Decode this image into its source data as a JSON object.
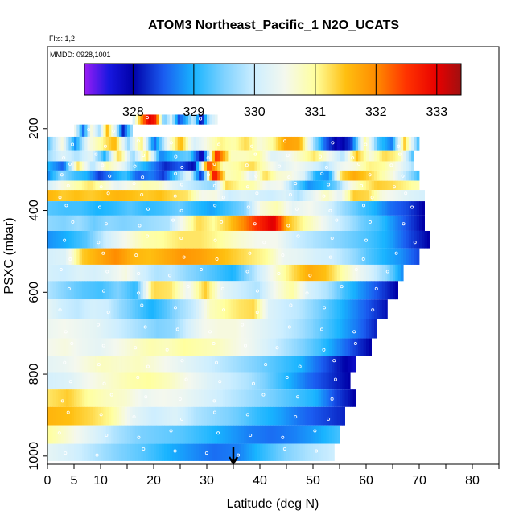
{
  "chart_data": {
    "type": "heatmap",
    "title": "ATOM3 Northeast_Pacific_1 N2O_UCATS",
    "subtitle_flights": "Flts: 1,2",
    "subtitle_dates": "MMDD: 0928,1001",
    "xlabel": "Latitude (deg N)",
    "ylabel": "PSXC (mbar)",
    "xlim": [
      0,
      85
    ],
    "ylim": [
      1020,
      0
    ],
    "x_ticks": [
      0,
      5,
      10,
      20,
      30,
      40,
      50,
      60,
      70,
      80
    ],
    "x_minor_ticks": [
      15,
      25,
      35,
      45,
      55,
      65,
      75,
      85
    ],
    "y_ticks": [
      200,
      400,
      600,
      800,
      1000
    ],
    "colorbar": {
      "min": 327.2,
      "max": 333.4,
      "ticks": [
        328,
        329,
        330,
        331,
        332,
        333
      ],
      "tick_labels": [
        "328",
        "329",
        "330",
        "331",
        "332",
        "333"
      ],
      "color_stops": [
        {
          "v": 327.2,
          "c": "#9a1cf5"
        },
        {
          "v": 327.6,
          "c": "#1818e0"
        },
        {
          "v": 328.0,
          "c": "#0000a8"
        },
        {
          "v": 328.5,
          "c": "#1a5cf0"
        },
        {
          "v": 329.0,
          "c": "#18b4ff"
        },
        {
          "v": 329.5,
          "c": "#7fd2ff"
        },
        {
          "v": 330.0,
          "c": "#cdeeff"
        },
        {
          "v": 330.5,
          "c": "#f4f8ee"
        },
        {
          "v": 331.0,
          "c": "#ffff9e"
        },
        {
          "v": 331.5,
          "c": "#ffbf10"
        },
        {
          "v": 332.0,
          "c": "#ff8c00"
        },
        {
          "v": 332.5,
          "c": "#ff3300"
        },
        {
          "v": 333.0,
          "c": "#e80000"
        },
        {
          "v": 333.4,
          "c": "#a01010"
        }
      ]
    },
    "arrow_latitude": 35,
    "bands": [
      {
        "p": 200,
        "lat0": 5,
        "lat1": 16,
        "vals": [
          330.4,
          328.6,
          330.6,
          329.8,
          331.5,
          330.2,
          328.2,
          329.6
        ]
      },
      {
        "p": 180,
        "lat0": 16,
        "lat1": 32,
        "vals": [
          330.2,
          331.8,
          333.1,
          332.6,
          329.3,
          330.2,
          328.4,
          329.0,
          330.1,
          327.8,
          329.8,
          330.3
        ]
      },
      {
        "p": 240,
        "lat0": 0,
        "lat1": 70,
        "vals": [
          329.4,
          330.6,
          328.8,
          330.5,
          331.0,
          331.6,
          329.6,
          331.2,
          328.5,
          330.4,
          331.6,
          330.1,
          330.6,
          331.1,
          330.9,
          331.3,
          330.6,
          331.0,
          331.8,
          331.7,
          329.9,
          328.5,
          327.8,
          328.4,
          331.0,
          329.2,
          328.7,
          331.4,
          329.3
        ]
      },
      {
        "p": 270,
        "lat0": 0,
        "lat1": 69,
        "vals": [
          329.7,
          330.2,
          329.8,
          330.3,
          329.0,
          331.4,
          329.6,
          331.2,
          328.7,
          329.2,
          329.4,
          327.8,
          332.7,
          330.8,
          330.8,
          331.0,
          330.2,
          330.4,
          330.8,
          331.2,
          330.5,
          329.8,
          331.5,
          330.6,
          331.3,
          331.0,
          329.3
        ]
      },
      {
        "p": 290,
        "lat0": 0,
        "lat1": 69,
        "vals": [
          329.0,
          328.5,
          331.2,
          329.8,
          330.9,
          330.4,
          329.3,
          328.8,
          328.2,
          328.5,
          328.0,
          332.5,
          330.8,
          331.0,
          331.3,
          330.7,
          330.2,
          330.5,
          330.2,
          329.8,
          330.4,
          330.6,
          331.1,
          331.0,
          330.5,
          329.8
        ]
      },
      {
        "p": 315,
        "lat0": 0,
        "lat1": 70,
        "vals": [
          328.8,
          329.6,
          329.2,
          329.0,
          328.3,
          328.8,
          329.2,
          328.5,
          328.7,
          328.3,
          329.3,
          330.4,
          328.1,
          333.0,
          330.8,
          331.0,
          330.2,
          331.3,
          330.7,
          330.6,
          330.2,
          329.0,
          328.8,
          331.3,
          331.7,
          331.4,
          331.0,
          330.6,
          329.9,
          329.2
        ]
      },
      {
        "p": 340,
        "lat0": 0,
        "lat1": 70,
        "vals": [
          330.1,
          330.6,
          330.9,
          331.2,
          330.8,
          330.3,
          330.6,
          330.9,
          330.8,
          330.3,
          330.0,
          329.8,
          329.6,
          331.3,
          331.0,
          330.9,
          330.4,
          330.5,
          329.5,
          328.8,
          329.0,
          329.4,
          330.5,
          331.0,
          331.4,
          331.3,
          331.1,
          330.9
        ]
      },
      {
        "p": 360,
        "lat0": 0,
        "lat1": 71,
        "vals": [
          331.6,
          331.4,
          331.5,
          331.4,
          331.5,
          331.6,
          331.5,
          331.4,
          331.5,
          331.3,
          331.2,
          330.5,
          330.6,
          330.0,
          330.2,
          330.1,
          330.0,
          330.2,
          329.8,
          330.3,
          330.8,
          330.3,
          331.4,
          331.3,
          330.6,
          330.4,
          330.2,
          330.1
        ]
      },
      {
        "p": 395,
        "lat0": 0,
        "lat1": 71,
        "vals": [
          329.3,
          329.2,
          329.2,
          329.0,
          329.1,
          329.3,
          329.1,
          329.2,
          329.4,
          329.1,
          328.9,
          329.2,
          329.5,
          330.6,
          330.9,
          330.3,
          330.5,
          330.2,
          329.7,
          329.3,
          329.0,
          328.6,
          328.4,
          328.0
        ]
      },
      {
        "p": 430,
        "lat0": 0,
        "lat1": 71,
        "vals": [
          329.6,
          329.5,
          329.7,
          329.4,
          329.6,
          329.5,
          329.6,
          329.7,
          329.8,
          330.6,
          331.3,
          331.0,
          331.4,
          332.0,
          332.6,
          333.1,
          331.5,
          331.0,
          330.6,
          330.1,
          329.8,
          329.4,
          329.2,
          328.8,
          328.4,
          328.0
        ]
      },
      {
        "p": 470,
        "lat0": 0,
        "lat1": 72,
        "vals": [
          328.8,
          329.0,
          329.3,
          330.0,
          330.5,
          330.9,
          331.0,
          331.2,
          331.2,
          331.0,
          330.7,
          330.5,
          330.5,
          330.0,
          329.8,
          329.6,
          329.4,
          329.2,
          328.9,
          328.4,
          328.0
        ]
      },
      {
        "p": 515,
        "lat0": 0,
        "lat1": 70,
        "vals": [
          330.1,
          330.2,
          331.4,
          331.7,
          332.0,
          331.6,
          331.5,
          331.7,
          331.9,
          331.8,
          331.6,
          331.4,
          331.2,
          331.0,
          330.4,
          330.3,
          330.1,
          330.0,
          329.7,
          329.3,
          329.0,
          328.8,
          328.4
        ]
      },
      {
        "p": 550,
        "lat0": 0,
        "lat1": 67,
        "vals": [
          330.1,
          330.0,
          330.2,
          330.1,
          330.3,
          330.6,
          330.1,
          329.8,
          329.9,
          329.6,
          329.4,
          329.2,
          329.0,
          329.6,
          330.2,
          330.8,
          331.3,
          331.7,
          331.5,
          331.0,
          330.5,
          330.1,
          329.6,
          328.8
        ]
      },
      {
        "p": 595,
        "lat0": 0,
        "lat1": 66,
        "vals": [
          329.8,
          329.5,
          329.3,
          329.2,
          329.5,
          329.1,
          331.3,
          331.2,
          330.4,
          331.4,
          330.3,
          330.0,
          329.8,
          330.5,
          331.0,
          330.1,
          329.8,
          329.2,
          328.8,
          328.4,
          328.0
        ]
      },
      {
        "p": 640,
        "lat0": 0,
        "lat1": 64,
        "vals": [
          330.3,
          330.0,
          329.9,
          330.1,
          330.0,
          329.6,
          329.3,
          329.0,
          329.3,
          329.7,
          330.0,
          330.8,
          331.0,
          331.2,
          331.3,
          330.2,
          330.0,
          329.9,
          329.6,
          329.3,
          329.0,
          328.7,
          328.4,
          328.1
        ]
      },
      {
        "p": 690,
        "lat0": 0,
        "lat1": 62,
        "vals": [
          330.4,
          330.5,
          330.4,
          330.3,
          330.1,
          329.9,
          329.7,
          329.5,
          329.6,
          330.1,
          330.5,
          330.6,
          330.6,
          330.4,
          330.2,
          330.0,
          329.8,
          329.5,
          329.2,
          328.9,
          328.6,
          328.2
        ]
      },
      {
        "p": 735,
        "lat0": 0,
        "lat1": 61,
        "vals": [
          330.5,
          330.6,
          330.4,
          330.3,
          330.5,
          330.7,
          330.9,
          330.8,
          331.0,
          330.9,
          330.8,
          330.6,
          330.4,
          330.1,
          329.8,
          329.5,
          329.2,
          328.8,
          328.4,
          328.0
        ]
      },
      {
        "p": 775,
        "lat0": 0,
        "lat1": 58,
        "vals": [
          330.3,
          330.4,
          330.6,
          330.8,
          330.7,
          330.8,
          330.6,
          330.4,
          330.2,
          330.0,
          329.8,
          329.6,
          329.4,
          329.2,
          329.0,
          328.6,
          328.2,
          327.8
        ]
      },
      {
        "p": 815,
        "lat0": 0,
        "lat1": 57,
        "vals": [
          330.1,
          330.2,
          330.5,
          330.7,
          330.9,
          331.0,
          330.8,
          330.5,
          330.2,
          330.0,
          329.8,
          329.4,
          329.0,
          328.6,
          328.3,
          328.0
        ]
      },
      {
        "p": 860,
        "lat0": 0,
        "lat1": 58,
        "vals": [
          331.2,
          331.4,
          331.0,
          330.8,
          330.7,
          330.4,
          330.5,
          330.4,
          330.2,
          330.0,
          329.8,
          329.6,
          329.4,
          329.2,
          329.0,
          328.4,
          328.0
        ]
      },
      {
        "p": 900,
        "lat0": 0,
        "lat1": 56,
        "vals": [
          331.6,
          331.5,
          331.3,
          331.0,
          330.3,
          330.0,
          330.2,
          329.8,
          329.6,
          329.4,
          329.1,
          328.9,
          328.6,
          328.4,
          328.2
        ]
      },
      {
        "p": 950,
        "lat0": 0,
        "lat1": 55,
        "vals": [
          331.0,
          330.6,
          330.2,
          329.8,
          329.5,
          329.4,
          329.3,
          329.1,
          328.9,
          328.7,
          328.6,
          328.7,
          328.9,
          329.2
        ]
      },
      {
        "p": 990,
        "lat0": 0,
        "lat1": 54,
        "vals": [
          330.3,
          330.1,
          329.8,
          329.5,
          329.3,
          329.0,
          328.8,
          328.6,
          328.7,
          329.1,
          329.5,
          329.8,
          330.0
        ]
      }
    ]
  }
}
